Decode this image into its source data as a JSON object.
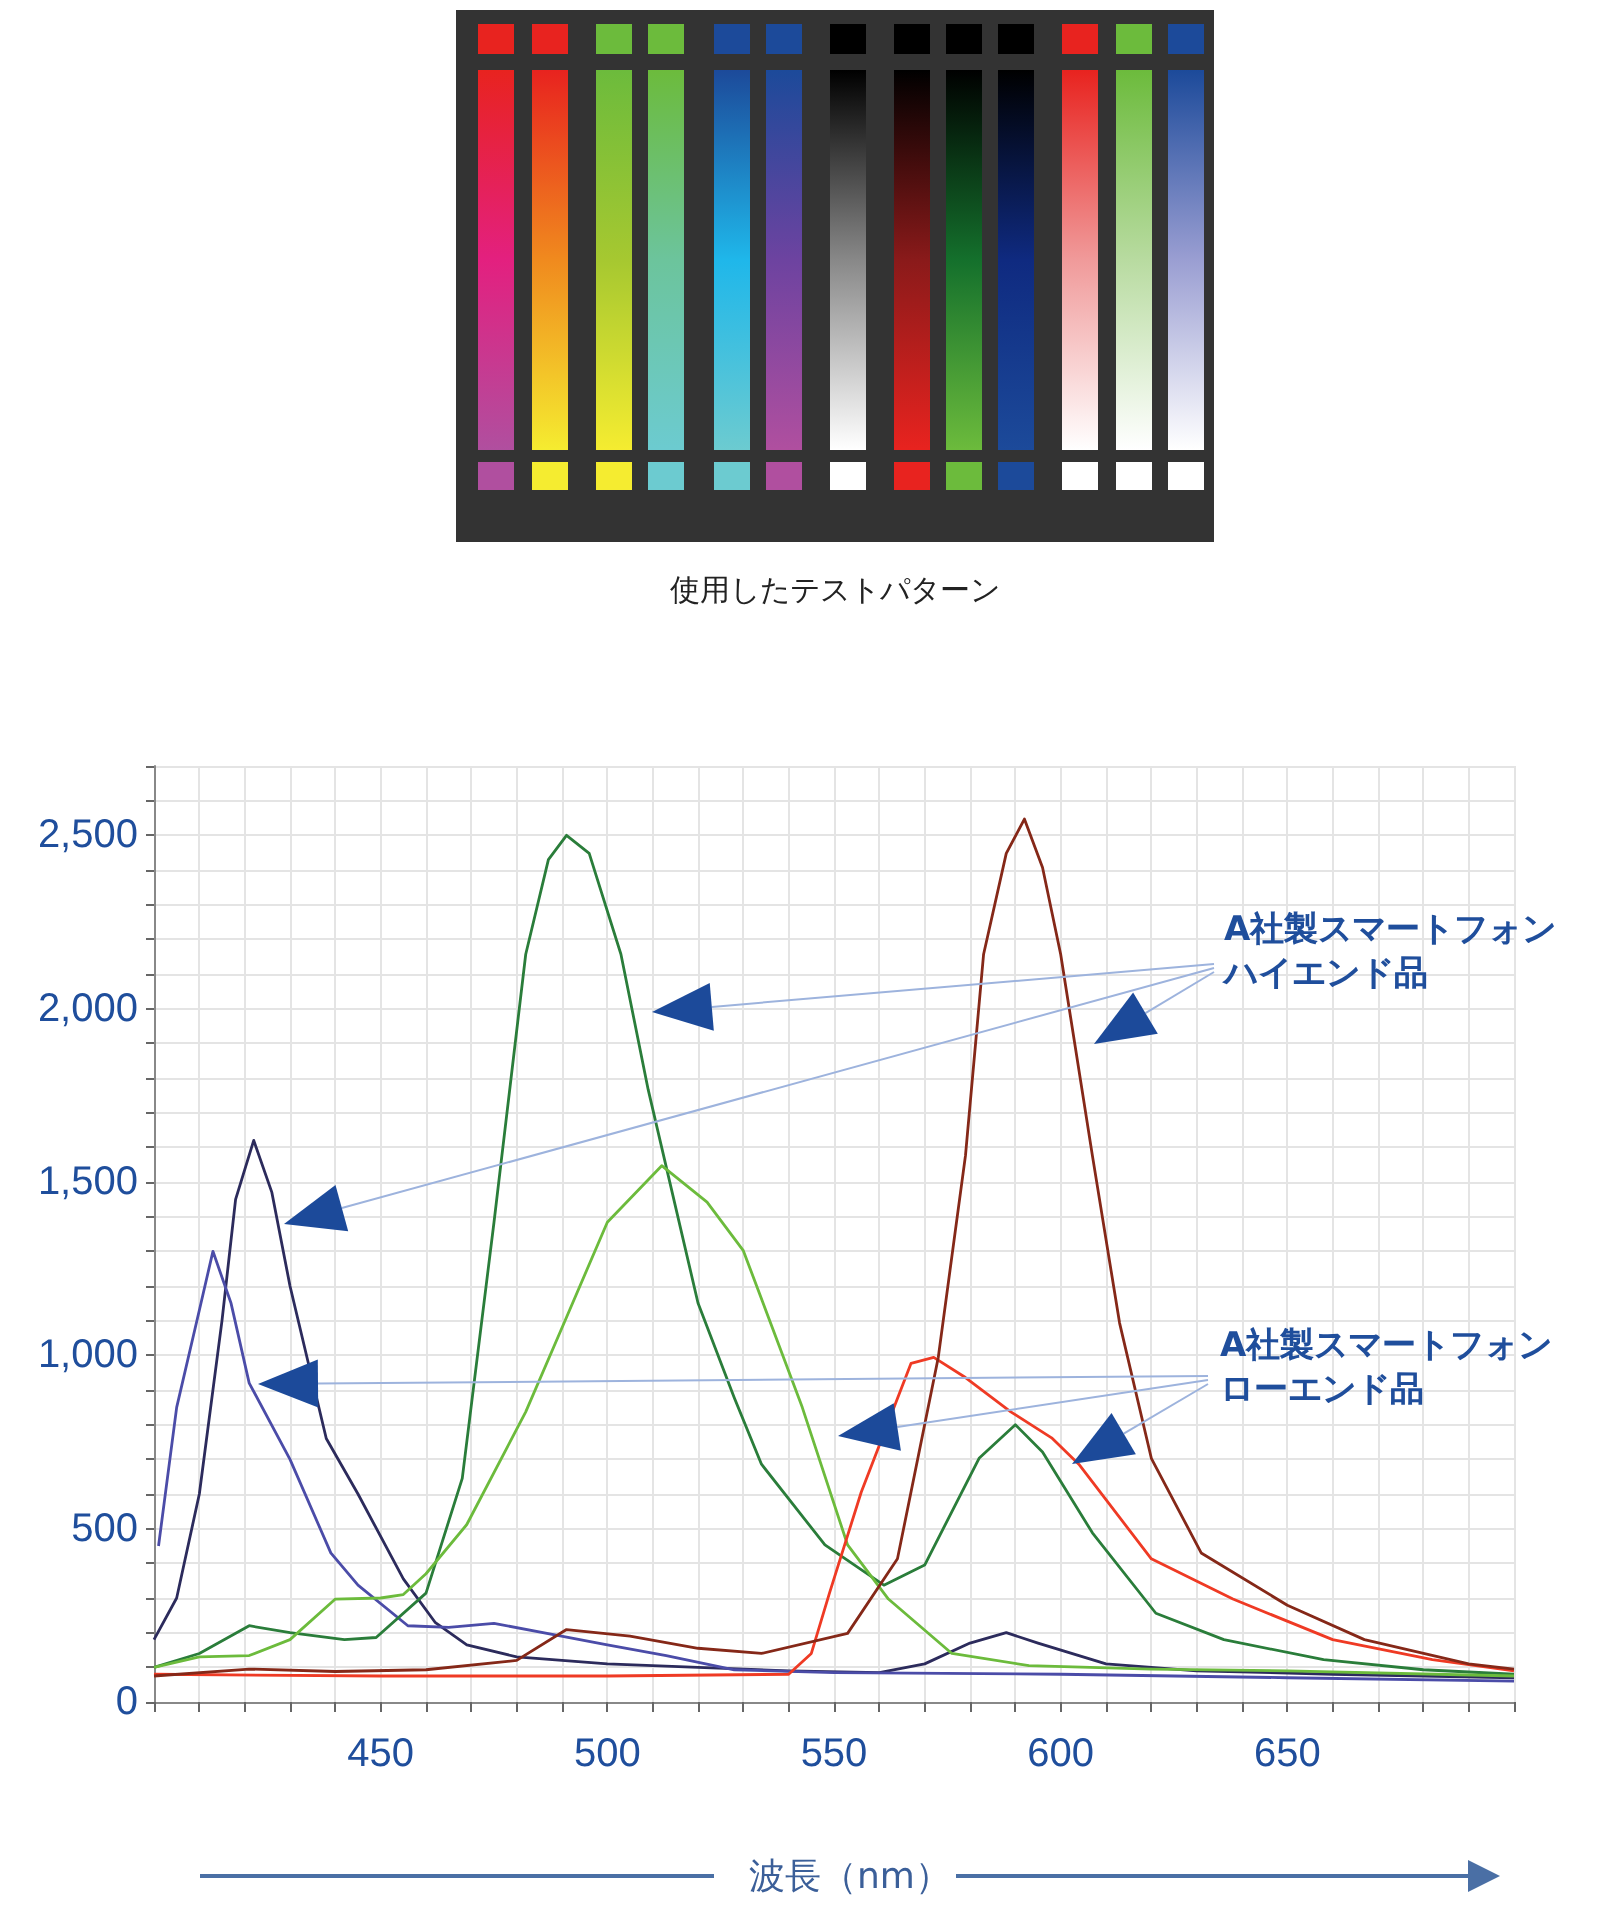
{
  "chart_data": {
    "type": "line",
    "xlabel": "波長（nm）",
    "annotations": [
      "使用したテストパターン",
      "A社製スマートフォン",
      "ハイエンド品",
      "A社製スマートフォン",
      "ローエンド品"
    ],
    "xlim": [
      400,
      700
    ],
    "xticks": [
      {
        "value": 400,
        "label": null
      },
      {
        "value": 410,
        "label": null
      },
      {
        "value": 420,
        "label": null
      },
      {
        "value": 430,
        "label": null
      },
      {
        "value": 440,
        "label": null
      },
      450,
      {
        "value": 460,
        "label": null
      },
      {
        "value": 470,
        "label": null
      },
      {
        "value": 480,
        "label": null
      },
      {
        "value": 490,
        "label": null
      },
      500,
      {
        "value": 510,
        "label": null
      },
      {
        "value": 520,
        "label": null
      },
      {
        "value": 530,
        "label": null
      },
      {
        "value": 540,
        "label": null
      },
      550,
      {
        "value": 560,
        "label": null
      },
      {
        "value": 570,
        "label": null
      },
      {
        "value": 580,
        "label": null
      },
      {
        "value": 590,
        "label": null
      },
      600,
      {
        "value": 610,
        "label": null
      },
      {
        "value": 620,
        "label": null
      },
      {
        "value": 630,
        "label": null
      },
      {
        "value": 640,
        "label": null
      },
      650,
      {
        "value": 660,
        "label": null
      },
      {
        "value": 670,
        "label": null
      },
      {
        "value": 680,
        "label": null
      },
      {
        "value": 690,
        "label": null
      },
      {
        "value": 700,
        "label": null
      }
    ],
    "ylim": [
      0,
      2700
    ],
    "yticks": [
      0,
      {
        "value": 100,
        "label": null
      },
      {
        "value": 200,
        "label": null
      },
      {
        "value": 300,
        "label": null
      },
      {
        "value": 400,
        "label": null
      },
      500,
      {
        "value": 600,
        "label": null
      },
      {
        "value": 700,
        "label": null
      },
      {
        "value": 800,
        "label": null
      },
      {
        "value": 900,
        "label": null
      },
      {
        "value": 1000,
        "label": "1,000"
      },
      {
        "value": 1100,
        "label": null
      },
      {
        "value": 1200,
        "label": null
      },
      {
        "value": 1300,
        "label": null
      },
      {
        "value": 1400,
        "label": null
      },
      {
        "value": 1500,
        "label": "1,500"
      },
      {
        "value": 1600,
        "label": null
      },
      {
        "value": 1700,
        "label": null
      },
      {
        "value": 1800,
        "label": null
      },
      {
        "value": 1900,
        "label": null
      },
      {
        "value": 2000,
        "label": "2,000"
      },
      {
        "value": 2100,
        "label": null
      },
      {
        "value": 2200,
        "label": null
      },
      {
        "value": 2300,
        "label": null
      },
      {
        "value": 2400,
        "label": null
      },
      {
        "value": 2500,
        "label": "2,500"
      },
      {
        "value": 2600,
        "label": null
      },
      {
        "value": 2700,
        "label": null
      }
    ],
    "grid": true,
    "marker": "none",
    "series": [
      {
        "color": "#2c2b5c",
        "x": [
          400,
          405,
          410,
          415,
          418,
          422,
          426,
          430,
          438,
          445,
          455,
          462,
          469,
          480,
          490,
          500,
          520,
          540,
          560,
          570,
          580,
          588,
          595,
          610,
          630,
          660,
          700
        ],
        "values": [
          180,
          300,
          600,
          1100,
          1450,
          1620,
          1470,
          1200,
          760,
          600,
          355,
          230,
          165,
          130,
          120,
          110,
          100,
          90,
          85,
          110,
          170,
          200,
          170,
          110,
          90,
          80,
          70
        ]
      },
      {
        "color": "#4b4ca8",
        "x": [
          401,
          405,
          410,
          413,
          417,
          421,
          430,
          439,
          445,
          456,
          465,
          475,
          489,
          500,
          513,
          528,
          550,
          600,
          650,
          700
        ],
        "values": [
          450,
          850,
          1130,
          1300,
          1150,
          920,
          700,
          430,
          337,
          220,
          215,
          227,
          192,
          165,
          134,
          93,
          85,
          80,
          70,
          60
        ]
      },
      {
        "color": "#2a7d3a",
        "x": [
          400,
          410,
          421,
          430,
          442,
          449,
          460,
          468,
          475,
          482,
          487,
          491,
          496,
          503,
          509,
          520,
          528,
          534,
          548,
          561,
          570,
          582,
          590,
          596,
          607,
          621,
          636,
          658,
          680,
          700
        ],
        "values": [
          100,
          140,
          220,
          200,
          180,
          186,
          314,
          645,
          1384,
          2157,
          2430,
          2500,
          2448,
          2157,
          1767,
          1151,
          878,
          686,
          453,
          337,
          395,
          703,
          800,
          721,
          488,
          256,
          180,
          122,
          93,
          80
        ]
      },
      {
        "color": "#6cbb3c",
        "x": [
          400,
          410,
          421,
          430,
          440,
          450,
          455,
          460,
          469,
          482,
          491,
          500,
          512,
          522,
          530,
          543,
          553,
          562,
          576,
          593,
          620,
          650,
          700
        ],
        "values": [
          100,
          130,
          134,
          180,
          297,
          300,
          310,
          370,
          512,
          837,
          1110,
          1384,
          1547,
          1442,
          1302,
          850,
          453,
          297,
          140,
          105,
          95,
          90,
          75
        ]
      },
      {
        "color": "#ef3a24",
        "x": [
          400,
          450,
          500,
          540,
          545,
          549,
          556,
          567,
          572,
          579,
          589,
          598,
          604,
          620,
          638,
          660,
          682,
          700
        ],
        "values": [
          80,
          75,
          75,
          80,
          140,
          314,
          605,
          977,
          994,
          936,
          837,
          762,
          686,
          413,
          297,
          180,
          122,
          90
        ]
      },
      {
        "color": "#852818",
        "x": [
          400,
          421,
          440,
          460,
          480,
          491,
          505,
          520,
          534,
          553,
          564,
          573,
          579,
          583,
          588,
          592,
          596,
          600,
          607,
          613,
          620,
          631,
          650,
          667,
          690,
          700
        ],
        "values": [
          75,
          95,
          88,
          93,
          120,
          209,
          190,
          155,
          140,
          198,
          413,
          994,
          1576,
          2157,
          2448,
          2547,
          2407,
          2157,
          1576,
          1093,
          703,
          430,
          279,
          180,
          110,
          95
        ]
      }
    ]
  }
}
